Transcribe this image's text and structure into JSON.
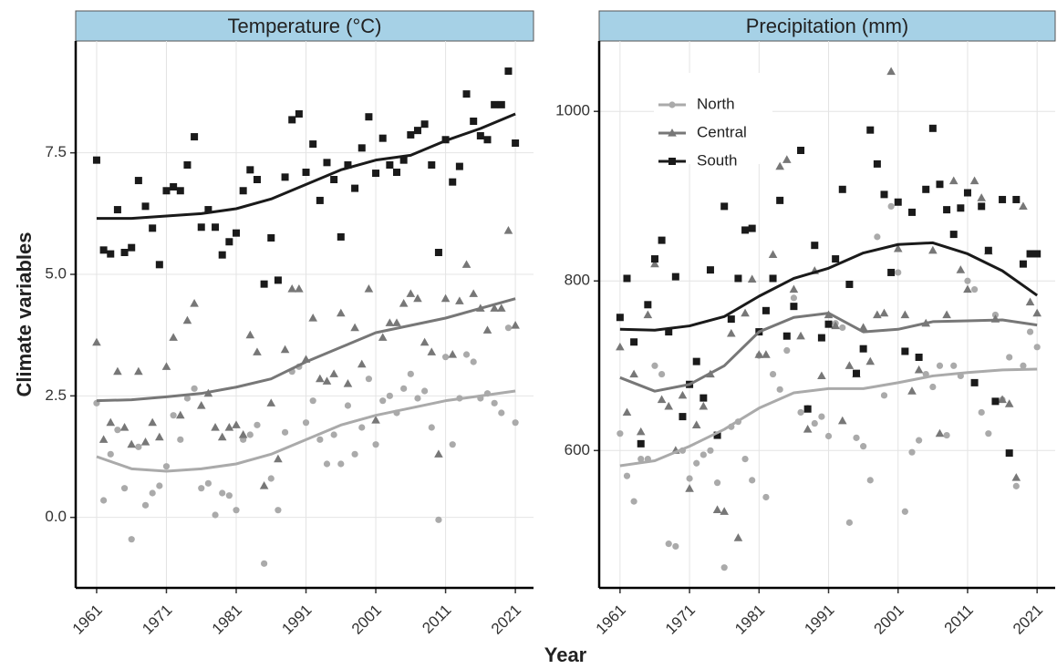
{
  "chart_data": [
    {
      "type": "scatter",
      "title": "Temperature (°C)",
      "xlabel": "Year",
      "ylabel": "Climate variables",
      "x": [
        1961,
        1962,
        1963,
        1964,
        1965,
        1966,
        1967,
        1968,
        1969,
        1970,
        1971,
        1972,
        1973,
        1974,
        1975,
        1976,
        1977,
        1978,
        1979,
        1980,
        1981,
        1982,
        1983,
        1984,
        1985,
        1986,
        1987,
        1988,
        1989,
        1990,
        1991,
        1992,
        1993,
        1994,
        1995,
        1996,
        1997,
        1998,
        1999,
        2000,
        2001,
        2002,
        2003,
        2004,
        2005,
        2006,
        2007,
        2008,
        2009,
        2010,
        2011,
        2012,
        2013,
        2014,
        2015,
        2016,
        2017,
        2018,
        2019,
        2020,
        2021
      ],
      "trend_x": [
        1961,
        1966,
        1971,
        1976,
        1981,
        1986,
        1991,
        1996,
        2001,
        2006,
        2011,
        2016,
        2021
      ],
      "xlim": [
        1958,
        2023.6
      ],
      "xticks": [
        1961,
        1971,
        1981,
        1991,
        2001,
        2011,
        2021
      ],
      "ylim": [
        -1.45,
        9.8
      ],
      "yticks": [
        {
          "value": 0,
          "label": "0.0"
        },
        2.5,
        {
          "value": 5,
          "label": "5.0"
        },
        7.5
      ],
      "grid": true,
      "series": [
        {
          "name": "North",
          "color": "#aaaaaa",
          "marker": "circle",
          "values": [
            2.35,
            0.35,
            1.3,
            1.8,
            0.6,
            -0.45,
            1.45,
            0.25,
            0.5,
            0.65,
            1.05,
            2.1,
            1.6,
            2.45,
            2.65,
            0.6,
            0.7,
            0.05,
            0.5,
            0.45,
            0.15,
            1.6,
            1.7,
            1.9,
            -0.95,
            0.8,
            0.15,
            1.75,
            3.0,
            3.1,
            1.95,
            2.4,
            1.6,
            1.1,
            1.7,
            1.1,
            2.3,
            1.3,
            1.85,
            2.85,
            1.5,
            2.4,
            2.5,
            2.15,
            2.65,
            2.95,
            2.45,
            2.6,
            1.85,
            -0.05,
            3.3,
            1.5,
            2.45,
            3.35,
            3.2,
            2.45,
            2.55,
            2.35,
            2.15,
            3.9,
            1.95
          ],
          "trend": [
            1.25,
            1.0,
            0.95,
            1.0,
            1.1,
            1.3,
            1.6,
            1.9,
            2.1,
            2.25,
            2.4,
            2.5,
            2.6
          ]
        },
        {
          "name": "Central",
          "color": "#777777",
          "marker": "triangle",
          "values": [
            3.6,
            1.6,
            1.95,
            3.0,
            1.85,
            1.5,
            3.0,
            1.55,
            1.95,
            1.65,
            3.1,
            3.7,
            2.1,
            4.05,
            4.4,
            2.3,
            2.55,
            1.85,
            1.65,
            1.85,
            1.9,
            1.7,
            3.75,
            3.4,
            0.65,
            2.35,
            1.2,
            3.45,
            4.7,
            4.7,
            3.25,
            4.1,
            2.85,
            2.8,
            2.95,
            4.2,
            2.75,
            3.9,
            3.15,
            4.7,
            2.0,
            3.7,
            4.0,
            4.0,
            4.4,
            4.6,
            4.5,
            3.6,
            3.4,
            1.3,
            4.5,
            3.35,
            4.45,
            5.2,
            4.6,
            4.3,
            3.85,
            4.3,
            4.3,
            5.9,
            3.95
          ],
          "trend": [
            2.4,
            2.42,
            2.48,
            2.55,
            2.68,
            2.85,
            3.2,
            3.5,
            3.8,
            3.95,
            4.1,
            4.3,
            4.5
          ]
        },
        {
          "name": "South",
          "color": "#1a1a1a",
          "marker": "square",
          "values": [
            7.35,
            5.5,
            5.42,
            6.33,
            5.45,
            5.55,
            6.93,
            6.4,
            5.95,
            5.2,
            6.72,
            6.8,
            6.72,
            7.25,
            7.83,
            5.97,
            6.33,
            5.97,
            5.4,
            5.67,
            5.85,
            6.72,
            7.15,
            6.95,
            4.8,
            5.75,
            4.88,
            7.0,
            8.18,
            8.3,
            7.1,
            7.68,
            6.52,
            7.3,
            6.95,
            5.77,
            7.25,
            6.77,
            7.6,
            8.24,
            7.08,
            7.8,
            7.25,
            7.1,
            7.35,
            7.87,
            7.96,
            8.09,
            7.25,
            5.45,
            7.77,
            6.9,
            7.22,
            8.71,
            8.15,
            7.85,
            7.77,
            8.49,
            8.49,
            9.18,
            7.7
          ],
          "trend": [
            6.15,
            6.15,
            6.2,
            6.25,
            6.35,
            6.55,
            6.85,
            7.15,
            7.35,
            7.45,
            7.75,
            8.0,
            8.3
          ]
        }
      ]
    },
    {
      "type": "scatter",
      "title": "Precipitation (mm)",
      "legend": "top-left",
      "x": [
        1961,
        1962,
        1963,
        1964,
        1965,
        1966,
        1967,
        1968,
        1969,
        1970,
        1971,
        1972,
        1973,
        1974,
        1975,
        1976,
        1977,
        1978,
        1979,
        1980,
        1981,
        1982,
        1983,
        1984,
        1985,
        1986,
        1987,
        1988,
        1989,
        1990,
        1991,
        1992,
        1993,
        1994,
        1995,
        1996,
        1997,
        1998,
        1999,
        2000,
        2001,
        2002,
        2003,
        2004,
        2005,
        2006,
        2007,
        2008,
        2009,
        2010,
        2011,
        2012,
        2013,
        2014,
        2015,
        2016,
        2017,
        2018,
        2019,
        2020,
        2021
      ],
      "trend_x": [
        1961,
        1966,
        1971,
        1976,
        1981,
        1986,
        1991,
        1996,
        2001,
        2006,
        2011,
        2016,
        2021
      ],
      "xlim": [
        1958,
        2023.6
      ],
      "xticks": [
        1961,
        1971,
        1981,
        1991,
        2001,
        2011,
        2021
      ],
      "ylim": [
        438,
        1083
      ],
      "yticks": [
        600,
        800,
        1000
      ],
      "grid": true,
      "series": [
        {
          "name": "North",
          "color": "#aaaaaa",
          "marker": "circle",
          "values": [
            620,
            570,
            540,
            590,
            590,
            700,
            690,
            490,
            487,
            600,
            567,
            585,
            595,
            600,
            562,
            462,
            628,
            634,
            590,
            565,
            712,
            545,
            690,
            672,
            718,
            780,
            645,
            650,
            632,
            640,
            617,
            750,
            745,
            515,
            615,
            605,
            565,
            852,
            665,
            888,
            810,
            528,
            598,
            612,
            690,
            675,
            700,
            618,
            700,
            688,
            800,
            790,
            645,
            620,
            760,
            660,
            710,
            558,
            700,
            740,
            722
          ],
          "trend": [
            582,
            588,
            605,
            625,
            650,
            668,
            673,
            673,
            680,
            688,
            692,
            695,
            696
          ]
        },
        {
          "name": "Central",
          "color": "#777777",
          "marker": "triangle",
          "values": [
            722,
            645,
            690,
            622,
            760,
            820,
            660,
            652,
            600,
            665,
            555,
            630,
            652,
            690,
            530,
            528,
            738,
            497,
            762,
            802,
            713,
            713,
            831,
            935,
            943,
            790,
            735,
            625,
            812,
            688,
            760,
            747,
            635,
            700,
            690,
            745,
            705,
            760,
            762,
            1047,
            838,
            760,
            670,
            695,
            750,
            836,
            620,
            760,
            918,
            813,
            790,
            918,
            898,
            835,
            755,
            660,
            655,
            568,
            888,
            775,
            762
          ],
          "trend": [
            686,
            670,
            678,
            700,
            740,
            757,
            762,
            740,
            743,
            752,
            753,
            754,
            748
          ]
        },
        {
          "name": "South",
          "color": "#1a1a1a",
          "marker": "square",
          "values": [
            757,
            803,
            728,
            608,
            772,
            826,
            848,
            740,
            805,
            640,
            678,
            705,
            662,
            813,
            618,
            888,
            755,
            803,
            860,
            862,
            740,
            765,
            803,
            895,
            735,
            770,
            954,
            649,
            842,
            733,
            749,
            826,
            908,
            796,
            691,
            720,
            978,
            938,
            902,
            810,
            893,
            717,
            881,
            710,
            908,
            980,
            914,
            884,
            855,
            886,
            904,
            680,
            888,
            836,
            658,
            896,
            597,
            896,
            820,
            832,
            832
          ],
          "trend": [
            743,
            742,
            747,
            758,
            782,
            803,
            815,
            833,
            843,
            845,
            832,
            812,
            783
          ]
        }
      ]
    }
  ]
}
